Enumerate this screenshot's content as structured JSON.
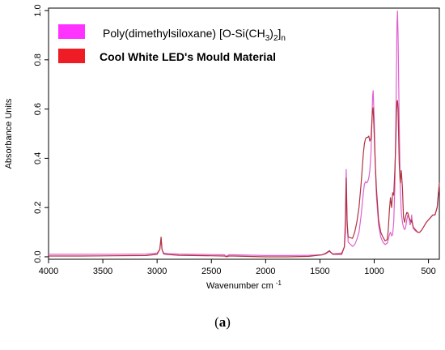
{
  "caption": {
    "open": "(",
    "letter": "a",
    "close": ")"
  },
  "chart_data": {
    "type": "line",
    "xlabel": "Wavenumber cm",
    "xlabel_sup": "-1",
    "ylabel": "Absorbance Units",
    "xlim": [
      4000,
      400
    ],
    "ylim": [
      -0.01,
      1.01
    ],
    "xticks": [
      4000,
      3500,
      3000,
      2500,
      2000,
      1500,
      1000,
      500
    ],
    "yticks": [
      0.0,
      0.2,
      0.4,
      0.6,
      0.8,
      1.0
    ],
    "ytick_labels": [
      "0.0",
      "0.2",
      "0.4",
      "0.6",
      "0.8",
      "1.0"
    ],
    "grid": false,
    "legend_position": "top-left",
    "legend": [
      {
        "label_main": "Poly(dimethylsiloxane) [O-Si(CH",
        "sub1": "3",
        "label_mid": ")",
        "sub2": "2",
        "label_end": "]",
        "sub3": "n",
        "color": "#ff33ff",
        "bold": false
      },
      {
        "label_main": "Cool White LED's Mould Material",
        "color": "#ee1c24",
        "bold": true
      }
    ],
    "series": [
      {
        "name": "Poly(dimethylsiloxane) [O-Si(CH3)2]n",
        "color": "#e060d0",
        "x": [
          4000,
          3700,
          3400,
          3100,
          3000,
          2975,
          2963,
          2955,
          2940,
          2920,
          2900,
          2800,
          2500,
          2380,
          2360,
          2340,
          2300,
          2000,
          1800,
          1600,
          1480,
          1445,
          1412,
          1400,
          1380,
          1300,
          1275,
          1266,
          1258,
          1250,
          1240,
          1200,
          1180,
          1160,
          1140,
          1120,
          1100,
          1090,
          1080,
          1070,
          1060,
          1050,
          1040,
          1030,
          1020,
          1015,
          1010,
          1000,
          990,
          980,
          960,
          940,
          920,
          900,
          880,
          870,
          860,
          850,
          840,
          830,
          820,
          810,
          800,
          795,
          790,
          785,
          780,
          770,
          760,
          750,
          740,
          730,
          720,
          710,
          700,
          690,
          680,
          670,
          660,
          655,
          650,
          640,
          620,
          600,
          580,
          560,
          540,
          520,
          500,
          480,
          460,
          440,
          420,
          400
        ],
        "y": [
          0.01,
          0.01,
          0.01,
          0.011,
          0.015,
          0.03,
          0.072,
          0.03,
          0.015,
          0.014,
          0.013,
          0.011,
          0.009,
          0.008,
          0.002,
          0.008,
          0.008,
          0.005,
          0.005,
          0.006,
          0.008,
          0.012,
          0.022,
          0.018,
          0.012,
          0.015,
          0.04,
          0.15,
          0.355,
          0.15,
          0.06,
          0.042,
          0.05,
          0.07,
          0.1,
          0.17,
          0.26,
          0.295,
          0.305,
          0.3,
          0.305,
          0.32,
          0.35,
          0.42,
          0.56,
          0.65,
          0.675,
          0.56,
          0.38,
          0.25,
          0.13,
          0.08,
          0.06,
          0.05,
          0.055,
          0.07,
          0.09,
          0.1,
          0.085,
          0.09,
          0.14,
          0.28,
          0.56,
          0.76,
          0.95,
          0.998,
          0.9,
          0.55,
          0.28,
          0.18,
          0.14,
          0.12,
          0.11,
          0.12,
          0.15,
          0.17,
          0.16,
          0.13,
          0.14,
          0.17,
          0.14,
          0.115,
          0.105,
          0.1,
          0.1,
          0.11,
          0.125,
          0.14,
          0.15,
          0.16,
          0.17,
          0.17,
          0.2,
          0.3
        ]
      },
      {
        "name": "Cool White LED's Mould Material",
        "color": "#b0333f",
        "x": [
          4000,
          3700,
          3400,
          3100,
          3000,
          2975,
          2963,
          2955,
          2940,
          2920,
          2900,
          2800,
          2500,
          2380,
          2360,
          2340,
          2300,
          2000,
          1800,
          1600,
          1480,
          1445,
          1412,
          1400,
          1380,
          1300,
          1275,
          1266,
          1258,
          1250,
          1240,
          1200,
          1180,
          1160,
          1140,
          1120,
          1100,
          1090,
          1080,
          1070,
          1060,
          1050,
          1040,
          1030,
          1020,
          1015,
          1010,
          1000,
          990,
          980,
          960,
          940,
          920,
          900,
          880,
          870,
          860,
          850,
          840,
          830,
          820,
          810,
          800,
          795,
          790,
          785,
          780,
          770,
          760,
          750,
          740,
          730,
          720,
          710,
          700,
          690,
          680,
          670,
          660,
          655,
          650,
          640,
          620,
          600,
          580,
          560,
          540,
          520,
          500,
          480,
          460,
          440,
          420,
          400
        ],
        "y": [
          0.003,
          0.003,
          0.004,
          0.005,
          0.01,
          0.03,
          0.08,
          0.03,
          0.012,
          0.01,
          0.009,
          0.006,
          0.004,
          0.003,
          0.0,
          0.003,
          0.003,
          0.0,
          0.0,
          0.002,
          0.008,
          0.015,
          0.025,
          0.018,
          0.01,
          0.01,
          0.04,
          0.1,
          0.32,
          0.14,
          0.08,
          0.075,
          0.1,
          0.14,
          0.2,
          0.3,
          0.42,
          0.46,
          0.48,
          0.485,
          0.485,
          0.49,
          0.47,
          0.48,
          0.56,
          0.6,
          0.605,
          0.5,
          0.38,
          0.28,
          0.15,
          0.1,
          0.08,
          0.065,
          0.07,
          0.11,
          0.19,
          0.24,
          0.2,
          0.26,
          0.25,
          0.35,
          0.48,
          0.58,
          0.63,
          0.635,
          0.6,
          0.38,
          0.3,
          0.35,
          0.28,
          0.16,
          0.14,
          0.165,
          0.18,
          0.178,
          0.16,
          0.15,
          0.14,
          0.15,
          0.14,
          0.12,
          0.11,
          0.1,
          0.1,
          0.11,
          0.125,
          0.14,
          0.15,
          0.16,
          0.17,
          0.17,
          0.2,
          0.3
        ]
      }
    ]
  }
}
